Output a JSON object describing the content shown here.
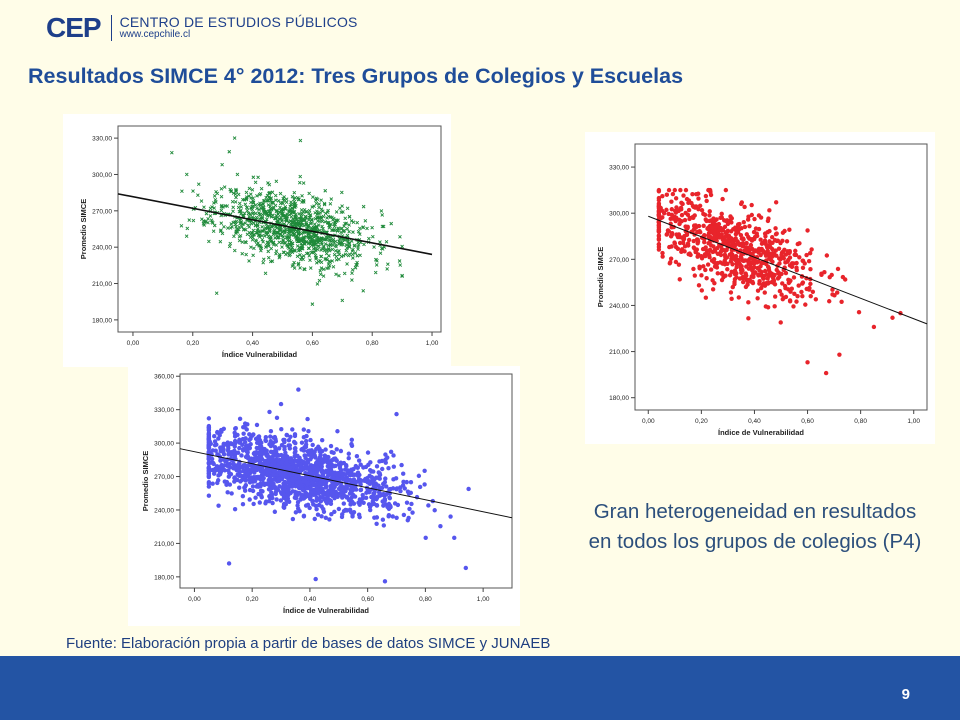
{
  "header": {
    "logo_mark": "CEP",
    "logo_name": "CENTRO DE ESTUDIOS PÚBLICOS",
    "logo_url": "www.cepchile.cl"
  },
  "title": "Resultados SIMCE 4° 2012: Tres Grupos de Colegios y Escuelas",
  "note": {
    "line1": "Gran heterogeneidad en resultados",
    "line2": "en todos los grupos de colegios (P4)"
  },
  "source": "Fuente: Elaboración propia a partir de bases de datos SIMCE y JUNAEB",
  "page_number": "9",
  "chart_data": [
    {
      "id": "green",
      "type": "scatter",
      "marker": "x",
      "color": "#1f8a3a",
      "xlabel": "Índice Vulnerabilidad",
      "ylabel": "Promedio SIMCE",
      "xlim": [
        -0.05,
        1.03
      ],
      "ylim": [
        170,
        340
      ],
      "xticks": [
        0.0,
        0.2,
        0.4,
        0.6,
        0.8,
        1.0
      ],
      "yticks": [
        180,
        210,
        240,
        270,
        300,
        330
      ],
      "xticklabels": [
        "0,00",
        "0,20",
        "0,40",
        "0,60",
        "0,80",
        "1,00"
      ],
      "yticklabels": [
        "180,00",
        "210,00",
        "240,00",
        "270,00",
        "300,00",
        "330,00"
      ],
      "fit_line": {
        "x": [
          -0.05,
          1.0
        ],
        "y": [
          284,
          234
        ]
      },
      "cloud": {
        "n": 1100,
        "x_mean": 0.53,
        "x_sd": 0.13,
        "x_range": [
          0.12,
          0.9
        ],
        "resid_sd": 14,
        "y_range": [
          180,
          332
        ],
        "seed": 11
      },
      "points": [
        [
          0.34,
          330
        ],
        [
          0.56,
          328
        ],
        [
          0.13,
          318
        ],
        [
          0.18,
          300
        ],
        [
          0.22,
          292
        ],
        [
          0.85,
          222
        ],
        [
          0.28,
          202
        ],
        [
          0.6,
          193
        ],
        [
          0.7,
          196
        ],
        [
          0.77,
          204
        ]
      ]
    },
    {
      "id": "red",
      "type": "scatter",
      "marker": "dot",
      "color": "#e8242b",
      "xlabel": "Índice de Vulnerabilidad",
      "ylabel": "Promedio SIMCE",
      "xlim": [
        -0.05,
        1.05
      ],
      "ylim": [
        172,
        345
      ],
      "xticks": [
        0.0,
        0.2,
        0.4,
        0.6,
        0.8,
        1.0
      ],
      "yticks": [
        180,
        210,
        240,
        270,
        300,
        330
      ],
      "xticklabels": [
        "0,00",
        "0,20",
        "0,40",
        "0,60",
        "0,80",
        "1,00"
      ],
      "yticklabels": [
        "180,00",
        "210,00",
        "240,00",
        "270,00",
        "300,00",
        "330,00"
      ],
      "fit_line": {
        "x": [
          0.0,
          1.05
        ],
        "y": [
          298,
          228
        ]
      },
      "cloud": {
        "n": 760,
        "x_mean": 0.3,
        "x_sd": 0.17,
        "x_range": [
          0.04,
          0.95
        ],
        "resid_sd": 13,
        "y_range": [
          196,
          315
        ],
        "seed": 23
      },
      "points": [
        [
          0.07,
          312
        ],
        [
          0.1,
          315
        ],
        [
          0.22,
          308
        ],
        [
          0.35,
          306
        ],
        [
          0.92,
          232
        ],
        [
          0.95,
          235
        ],
        [
          0.85,
          226
        ],
        [
          0.67,
          196
        ],
        [
          0.6,
          203
        ],
        [
          0.72,
          208
        ]
      ]
    },
    {
      "id": "blue",
      "type": "scatter",
      "marker": "dot",
      "color": "#5656ee",
      "xlabel": "Índice de Vulnerabilidad",
      "ylabel": "Promedio SIMCE",
      "xlim": [
        -0.05,
        1.1
      ],
      "ylim": [
        170,
        362
      ],
      "xticks": [
        0.0,
        0.2,
        0.4,
        0.6,
        0.8,
        1.0
      ],
      "yticks": [
        180,
        210,
        240,
        270,
        300,
        330,
        360
      ],
      "xticklabels": [
        "0,00",
        "0,20",
        "0,40",
        "0,60",
        "0,80",
        "1,00"
      ],
      "yticklabels": [
        "180,00",
        "210,00",
        "240,00",
        "270,00",
        "300,00",
        "330,00",
        "360,00"
      ],
      "fit_line": {
        "x": [
          -0.05,
          1.1
        ],
        "y": [
          295,
          233
        ]
      },
      "cloud": {
        "n": 1500,
        "x_mean": 0.34,
        "x_sd": 0.18,
        "x_range": [
          0.05,
          0.95
        ],
        "resid_sd": 15,
        "y_range": [
          178,
          335
        ],
        "seed": 37
      },
      "points": [
        [
          0.36,
          348
        ],
        [
          0.26,
          328
        ],
        [
          0.3,
          335
        ],
        [
          0.7,
          326
        ],
        [
          0.94,
          188
        ],
        [
          0.42,
          178
        ],
        [
          0.66,
          176
        ],
        [
          0.9,
          215
        ],
        [
          0.12,
          192
        ]
      ]
    }
  ]
}
